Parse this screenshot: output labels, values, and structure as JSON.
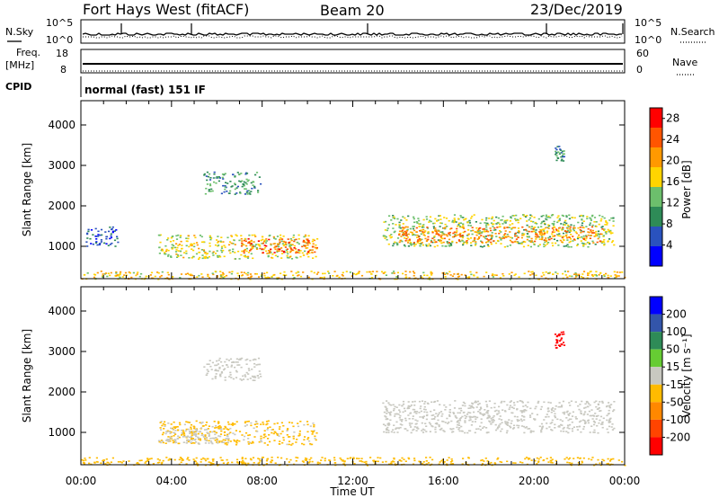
{
  "header": {
    "station": "Fort Hays West (fitACF)",
    "beam": "Beam 20",
    "date": "23/Dec/2019"
  },
  "top_panels": {
    "nsky_label": "N.Sky",
    "nsky_ticks": [
      "10^5",
      "10^0"
    ],
    "nsearch_label": "N.Search",
    "nsearch_ticks": [
      "10^5",
      "10^0"
    ],
    "freq_label": "Freq.",
    "freq_unit": "[MHz]",
    "freq_ticks": [
      "18",
      "8"
    ],
    "nave_label": "Nave",
    "nave_ticks": [
      "60",
      "0"
    ],
    "cpid_label": "CPID",
    "cpid_text": "normal (fast) 151 IF"
  },
  "colors": {
    "power_scale": [
      "#0000ff",
      "#2a52be",
      "#2e8b57",
      "#6cbf6c",
      "#ffd400",
      "#ff9900",
      "#ff5500",
      "#ff0000"
    ],
    "velocity_scale": [
      "#0000ff",
      "#3355aa",
      "#2e8b57",
      "#66cc33",
      "#c8c8c0",
      "#ffbb00",
      "#ff8800",
      "#ff4400",
      "#ff0000"
    ],
    "ground_scatter": "#b4b4b0"
  },
  "chart_data": [
    {
      "type": "heatmap",
      "name": "power",
      "xlabel": "Time UT",
      "ylabel": "Slant Range [km]",
      "x_ticks": [
        "00:00",
        "04:00",
        "08:00",
        "12:00",
        "16:00",
        "20:00",
        "00:00"
      ],
      "y_ticks": [
        1000,
        2000,
        3000,
        4000
      ],
      "xlim": [
        0,
        24
      ],
      "ylim": [
        200,
        4600
      ],
      "colorbar": {
        "label": "Power [dB]",
        "ticks": [
          4,
          8,
          12,
          16,
          20,
          24,
          28
        ],
        "range": [
          0,
          30
        ]
      },
      "regions": [
        {
          "t0": 0.2,
          "t1": 1.6,
          "r0": 1000,
          "r1": 1500,
          "value": 6
        },
        {
          "t0": 3.4,
          "t1": 10.4,
          "r0": 700,
          "r1": 1300,
          "value": 16
        },
        {
          "t0": 7.0,
          "t1": 10.4,
          "r0": 850,
          "r1": 1200,
          "value": 24
        },
        {
          "t0": 5.4,
          "t1": 7.9,
          "r0": 2300,
          "r1": 2850,
          "value": 10
        },
        {
          "t0": 13.3,
          "t1": 23.5,
          "r0": 1000,
          "r1": 1800,
          "value": 14
        },
        {
          "t0": 14.0,
          "t1": 23.0,
          "r0": 1100,
          "r1": 1500,
          "value": 22
        },
        {
          "t0": 20.9,
          "t1": 21.3,
          "r0": 3100,
          "r1": 3500,
          "value": 9
        },
        {
          "t0": 0.0,
          "t1": 24.0,
          "r0": 200,
          "r1": 400,
          "value": 18
        }
      ]
    },
    {
      "type": "heatmap",
      "name": "velocity",
      "xlabel": "Time UT",
      "ylabel": "Slant Range [km]",
      "x_ticks": [
        "00:00",
        "04:00",
        "08:00",
        "12:00",
        "16:00",
        "20:00",
        "00:00"
      ],
      "y_ticks": [
        1000,
        2000,
        3000,
        4000
      ],
      "xlim": [
        0,
        24
      ],
      "ylim": [
        200,
        4600
      ],
      "colorbar": {
        "label": "Velocity [m s⁻¹]",
        "ticks": [
          200,
          100,
          50,
          15,
          -15,
          -50,
          -100,
          -200
        ],
        "range": [
          -250,
          250
        ]
      },
      "regions": [
        {
          "t0": 3.4,
          "t1": 10.4,
          "r0": 700,
          "r1": 1300,
          "value": -30
        },
        {
          "t0": 3.4,
          "t1": 6.5,
          "r0": 750,
          "r1": 1100,
          "value": 0
        },
        {
          "t0": 5.4,
          "t1": 7.9,
          "r0": 2300,
          "r1": 2850,
          "value": 0
        },
        {
          "t0": 13.3,
          "t1": 23.5,
          "r0": 1000,
          "r1": 1800,
          "value": 0
        },
        {
          "t0": 20.9,
          "t1": 21.3,
          "r0": 3100,
          "r1": 3500,
          "value": -220
        },
        {
          "t0": 0.0,
          "t1": 24.0,
          "r0": 200,
          "r1": 400,
          "value": -40
        }
      ]
    }
  ]
}
